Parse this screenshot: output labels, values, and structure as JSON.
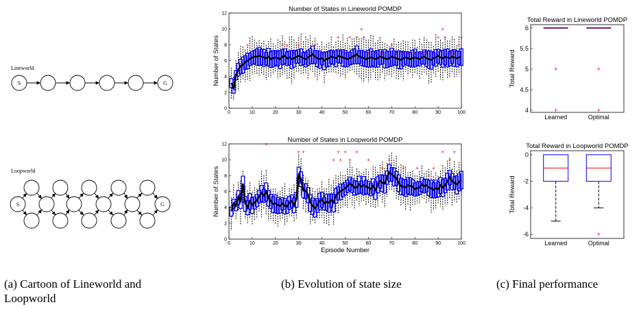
{
  "captions": {
    "a": "(a) Cartoon of Lineworld and Loopworld",
    "b": "(b) Evolution of state size",
    "c": "(c) Final performance"
  },
  "diagrams": {
    "lineworld": {
      "label": "Lineworld",
      "start": "S",
      "goal": "G"
    },
    "loopworld": {
      "label": "Loopworld",
      "start": "S",
      "goal": "G"
    }
  },
  "chart_data": [
    {
      "id": "line_states",
      "type": "box",
      "title": "Number of States in Lineworld POMDP",
      "xlabel": "",
      "ylabel": "Number of States",
      "xlim": [
        0,
        100
      ],
      "ylim": [
        0,
        12
      ],
      "xticks": [
        0,
        10,
        20,
        30,
        40,
        50,
        60,
        70,
        80,
        90,
        100
      ],
      "yticks": [
        0,
        2,
        4,
        6,
        8,
        10,
        12
      ],
      "mean": [
        3.2,
        2.5,
        4.2,
        4.9,
        5.3,
        5.5,
        5.8,
        6.0,
        6.2,
        6.4,
        6.5,
        6.5,
        6.6,
        6.5,
        6.4,
        6.3,
        6.5,
        6.2,
        6.3,
        6.4,
        6.3,
        6.2,
        6.5,
        6.6,
        6.3,
        6.4,
        6.2,
        6.3,
        6.5,
        6.6,
        6.5,
        6.3,
        6.2,
        6.4,
        6.6,
        6.8,
        6.5,
        6.3,
        6.2,
        6.3,
        6.0,
        6.2,
        6.3,
        6.5,
        6.4,
        6.3,
        6.6,
        6.5,
        6.4,
        6.3,
        6.2,
        6.3,
        6.5,
        6.6,
        6.8,
        6.5,
        6.4,
        6.3,
        6.2,
        6.3,
        6.4,
        6.3,
        6.2,
        6.3,
        6.5,
        6.4,
        6.3,
        6.2,
        6.3,
        6.5,
        6.4,
        6.3,
        6.2,
        6.1,
        6.3,
        6.4,
        6.3,
        6.2,
        6.3,
        6.4,
        6.3,
        6.2,
        6.4,
        6.5,
        6.3,
        6.2,
        6.1,
        6.3,
        6.4,
        6.6,
        6.4,
        6.3,
        6.5,
        6.4,
        6.3,
        6.5,
        6.4,
        6.3,
        6.4,
        6.5
      ],
      "outliers": [
        [
          8,
          8
        ],
        [
          13,
          7
        ],
        [
          20,
          7
        ],
        [
          23,
          8
        ],
        [
          25,
          8
        ],
        [
          28,
          7
        ],
        [
          30,
          8
        ],
        [
          33,
          7
        ],
        [
          37,
          8
        ],
        [
          40,
          7
        ],
        [
          45,
          7
        ],
        [
          47,
          9
        ],
        [
          50,
          7
        ],
        [
          52,
          9
        ],
        [
          55,
          9
        ],
        [
          57,
          10
        ],
        [
          58,
          9
        ],
        [
          60,
          7
        ],
        [
          63,
          7
        ],
        [
          66,
          7
        ],
        [
          70,
          8
        ],
        [
          72,
          7
        ],
        [
          75,
          7
        ],
        [
          77,
          7
        ],
        [
          80,
          7
        ],
        [
          83,
          7
        ],
        [
          85,
          7
        ],
        [
          88,
          7
        ],
        [
          90,
          9
        ],
        [
          92,
          10
        ],
        [
          93,
          9
        ],
        [
          95,
          7
        ],
        [
          97,
          7
        ],
        [
          99,
          8
        ],
        [
          100,
          9
        ]
      ]
    },
    {
      "id": "loop_states",
      "type": "box",
      "title": "Number of States in Loopworld POMDP",
      "xlabel": "Episode Number",
      "ylabel": "Number of States",
      "xlim": [
        0,
        100
      ],
      "ylim": [
        0,
        12
      ],
      "xticks": [
        0,
        10,
        20,
        30,
        40,
        50,
        60,
        70,
        80,
        90,
        100
      ],
      "yticks": [
        0,
        2,
        4,
        6,
        8,
        10,
        12
      ],
      "mean": [
        3.5,
        4.5,
        4.2,
        5.3,
        4.8,
        7.0,
        4.5,
        4.0,
        4.8,
        4.3,
        4.6,
        4.9,
        5.4,
        5.8,
        5.5,
        6.0,
        5.2,
        4.8,
        4.4,
        4.5,
        4.3,
        4.2,
        4.5,
        4.2,
        4.1,
        4.6,
        4.8,
        4.3,
        5.0,
        8.1,
        7.6,
        6.1,
        6.1,
        5.6,
        4.6,
        4.2,
        3.9,
        4.3,
        4.8,
        5.0,
        4.5,
        4.7,
        4.6,
        4.9,
        4.6,
        5.5,
        5.8,
        6.0,
        6.2,
        6.4,
        6.7,
        7.0,
        6.8,
        6.5,
        6.5,
        6.9,
        6.6,
        6.8,
        6.6,
        6.5,
        6.3,
        6.7,
        6.2,
        6.9,
        7.3,
        7.1,
        7.0,
        7.8,
        8.4,
        8.2,
        7.9,
        7.7,
        7.1,
        6.7,
        6.6,
        6.5,
        6.8,
        6.7,
        6.6,
        6.3,
        6.4,
        6.5,
        6.9,
        6.7,
        6.8,
        6.5,
        6.4,
        6.2,
        6.4,
        6.3,
        6.8,
        6.5,
        6.8,
        7.3,
        7.8,
        7.3,
        7.1,
        6.9,
        7.2,
        7.5
      ],
      "outliers": [
        [
          16,
          12
        ],
        [
          30,
          11
        ],
        [
          32,
          11
        ],
        [
          45,
          10
        ],
        [
          47,
          11
        ],
        [
          48,
          10
        ],
        [
          50,
          11
        ],
        [
          52,
          10
        ],
        [
          55,
          11
        ],
        [
          60,
          10
        ],
        [
          66,
          9
        ],
        [
          69,
          10
        ],
        [
          75,
          9
        ],
        [
          81,
          9
        ],
        [
          86,
          8
        ],
        [
          88,
          9
        ],
        [
          92,
          11
        ],
        [
          95,
          10
        ],
        [
          97,
          11
        ]
      ]
    },
    {
      "id": "line_reward",
      "type": "box",
      "title": "Total Reward in Lineworld POMDP",
      "xlabel": "",
      "ylabel": "Total Reward",
      "categories": [
        "Learned",
        "Optimal"
      ],
      "ylim": [
        3.95,
        6.08
      ],
      "yticks": [
        4,
        4.5,
        5,
        5.5,
        6
      ],
      "yticklabels": [
        "4",
        "4.5",
        "5",
        "5.5",
        "6"
      ],
      "boxes": [
        {
          "q1": 6,
          "median": 6,
          "q3": 6,
          "lower_whisker": 6,
          "upper_whisker": 6,
          "outliers": [
            5,
            4
          ]
        },
        {
          "q1": 6,
          "median": 6,
          "q3": 6,
          "lower_whisker": 6,
          "upper_whisker": 6,
          "outliers": [
            5,
            4
          ]
        }
      ]
    },
    {
      "id": "loop_reward",
      "type": "box",
      "title": "Total Reward in Loopworld POMDP",
      "xlabel": "",
      "ylabel": "Total Reward",
      "categories": [
        "Learned",
        "Optimal"
      ],
      "ylim": [
        -6.3,
        0.3
      ],
      "yticks": [
        0,
        -2,
        -4,
        -6
      ],
      "yticklabels": [
        "0",
        "-2",
        "-4",
        "-6"
      ],
      "boxes": [
        {
          "q1": -2,
          "median": -1,
          "q3": 0,
          "lower_whisker": -5,
          "upper_whisker": 0,
          "outliers": []
        },
        {
          "q1": -2,
          "median": -1,
          "q3": 0,
          "lower_whisker": -4,
          "upper_whisker": 0,
          "outliers": [
            -6
          ]
        }
      ]
    }
  ],
  "colors": {
    "box": "#0000ff",
    "whisker": "#000000",
    "outlier": "#ff0000",
    "median": "#ff0000",
    "mean_line": "#000000",
    "reward_median_top": "#7a1f6e"
  }
}
